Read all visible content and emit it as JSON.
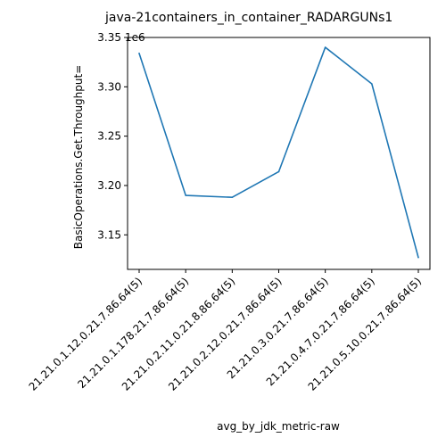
{
  "chart_data": {
    "type": "line",
    "title": "java-21containers_in_container_RADARGUNs1",
    "xlabel": "avg_by_jdk_metric-raw",
    "ylabel": "BasicOperations.Get.Throughput=",
    "y_offset_label": "1e6",
    "y_scale": 1000000,
    "categories": [
      "21.21.0.1.12.0.21.7.86.64(5)",
      "21.21.0.1.178.21.7.86.64(5)",
      "21.21.0.2.11.0.21.8.86.64(5)",
      "21.21.0.2.12.0.21.7.86.64(5)",
      "21.21.0.3.0.21.7.86.64(5)",
      "21.21.0.4.7.0.21.7.86.64(5)",
      "21.21.0.5.10.0.21.7.86.64(5)"
    ],
    "values": [
      3334000,
      3190000,
      3188000,
      3214000,
      3340000,
      3303000,
      3127000
    ],
    "ylim": [
      3115000,
      3350000
    ],
    "yticks": [
      3150000,
      3200000,
      3250000,
      3300000,
      3350000
    ],
    "ytick_labels": [
      "3.15",
      "3.20",
      "3.25",
      "3.30",
      "3.35"
    ],
    "line_color": "#1f77b4",
    "grid": false,
    "legend": "none"
  }
}
